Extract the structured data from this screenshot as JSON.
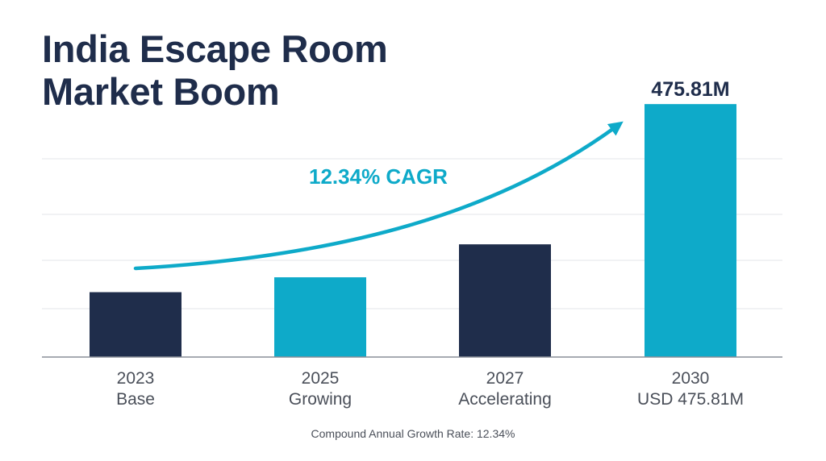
{
  "colors": {
    "navy": "#1f2d4b",
    "teal": "#0eaac9",
    "grid": "#e3e6ea",
    "axis": "#8a8f98",
    "label": "#4a4f59"
  },
  "chart_data": {
    "type": "bar",
    "title_lines": [
      "India Escape Room",
      "Market Boom"
    ],
    "categories": [
      "2023",
      "2025",
      "2027",
      "2030"
    ],
    "category_sublabels": [
      "Base",
      "Growing",
      "Accelerating",
      "USD 475.81M"
    ],
    "values": [
      122,
      150,
      212,
      475.81
    ],
    "bar_colors": [
      "#1f2d4b",
      "#0eaac9",
      "#1f2d4b",
      "#0eaac9"
    ],
    "data_labels": [
      "",
      "",
      "",
      "475.81M"
    ],
    "annotation": "12.34% CAGR",
    "ylim": [
      0,
      520
    ],
    "grid": true,
    "xlabel": "",
    "ylabel": ""
  },
  "footnote": "Compound Annual Growth Rate: 12.34%"
}
